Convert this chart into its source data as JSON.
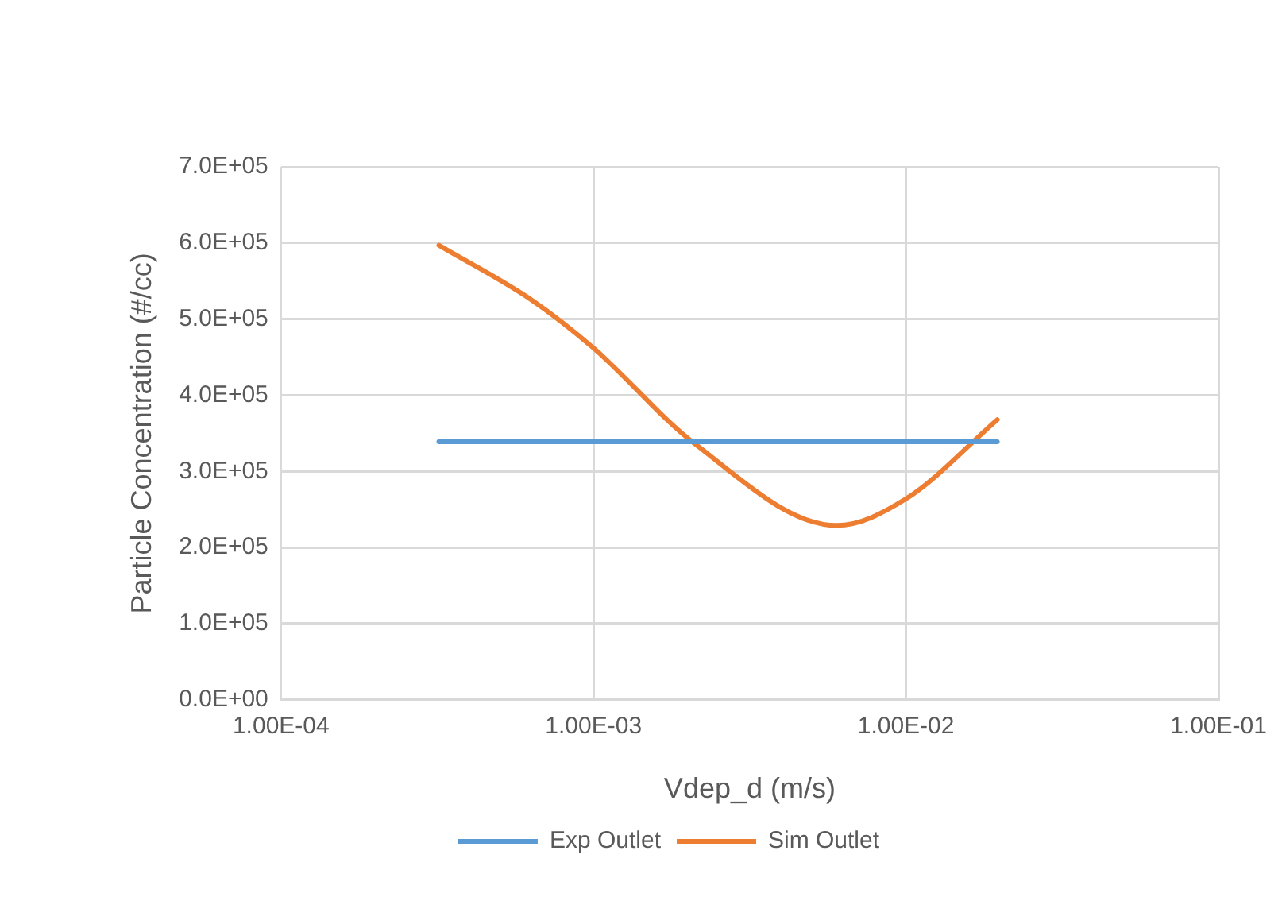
{
  "chart_data": {
    "type": "line",
    "xlabel": "Vdep_d (m/s)",
    "ylabel": "Particle Concentration (#/cc)",
    "log": "x",
    "xlim": [
      0.0001,
      0.1
    ],
    "xticks": [
      {
        "value": 0.0001,
        "label": "1.00E-04"
      },
      {
        "value": 0.001,
        "label": "1.00E-03"
      },
      {
        "value": 0.01,
        "label": "1.00E-02"
      },
      {
        "value": 0.1,
        "label": "1.00E-01"
      }
    ],
    "ylim": [
      0,
      700000
    ],
    "yticks": [
      {
        "value": 0,
        "label": "0.0E+00"
      },
      {
        "value": 100000,
        "label": "1.0E+05"
      },
      {
        "value": 200000,
        "label": "2.0E+05"
      },
      {
        "value": 300000,
        "label": "3.0E+05"
      },
      {
        "value": 400000,
        "label": "4.0E+05"
      },
      {
        "value": 500000,
        "label": "5.0E+05"
      },
      {
        "value": 600000,
        "label": "6.0E+05"
      },
      {
        "value": 700000,
        "label": "7.0E+05"
      }
    ],
    "grid": true,
    "legend": "bottom",
    "marker": "none",
    "line_style": "solid",
    "series": [
      {
        "name": "Exp Outlet",
        "color": "#5b9bd5",
        "x": [
          0.00032,
          0.0196
        ],
        "values": [
          339000,
          339000
        ]
      },
      {
        "name": "Sim Outlet",
        "color": "#ed7d31",
        "x": [
          0.00032,
          0.00064,
          0.001,
          0.0021,
          0.006,
          0.01,
          0.0196
        ],
        "values": [
          597000,
          524000,
          462000,
          337000,
          229000,
          264000,
          368000
        ]
      }
    ]
  }
}
